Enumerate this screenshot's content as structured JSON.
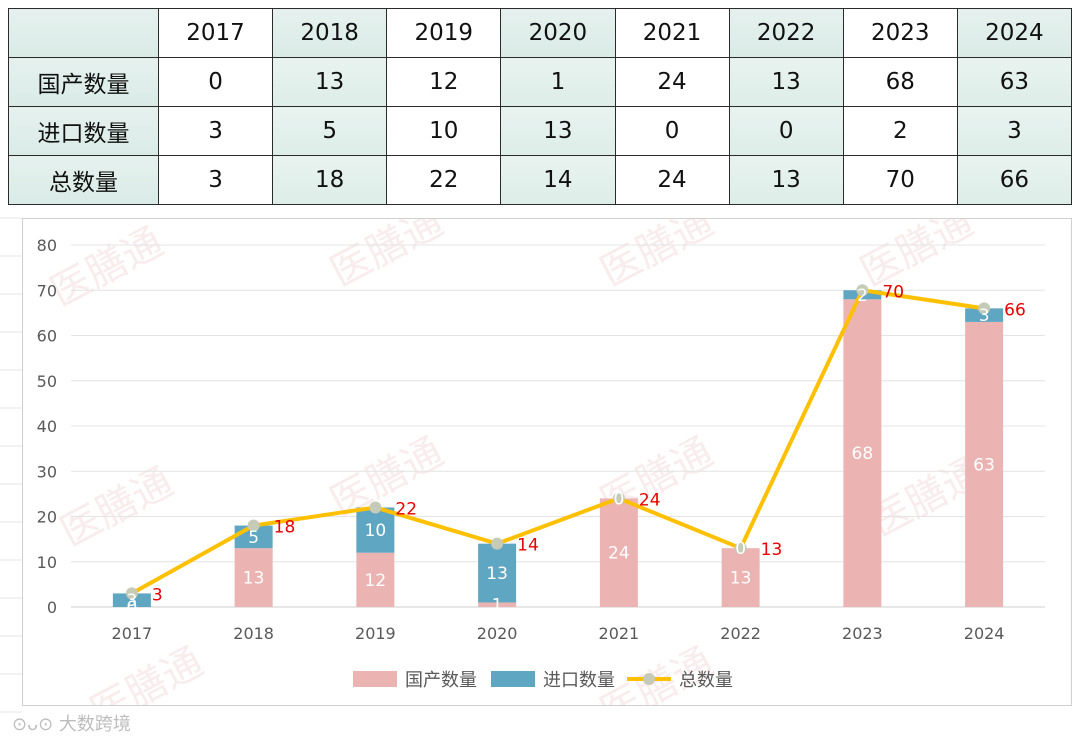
{
  "table": {
    "years": [
      "2017",
      "2018",
      "2019",
      "2020",
      "2021",
      "2022",
      "2023",
      "2024"
    ],
    "rows": [
      {
        "label": "国产数量",
        "values": [
          "0",
          "13",
          "12",
          "1",
          "24",
          "13",
          "68",
          "63"
        ]
      },
      {
        "label": "进口数量",
        "values": [
          "3",
          "5",
          "10",
          "13",
          "0",
          "0",
          "2",
          "3"
        ]
      },
      {
        "label": "总数量",
        "values": [
          "3",
          "18",
          "22",
          "14",
          "24",
          "13",
          "70",
          "66"
        ]
      }
    ]
  },
  "chart_data": {
    "type": "bar",
    "stacked": true,
    "categories": [
      "2017",
      "2018",
      "2019",
      "2020",
      "2021",
      "2022",
      "2023",
      "2024"
    ],
    "series": [
      {
        "name": "国产数量",
        "type": "bar",
        "color": "#ebb4b2",
        "values": [
          0,
          13,
          12,
          1,
          24,
          13,
          68,
          63
        ]
      },
      {
        "name": "进口数量",
        "type": "bar",
        "color": "#5fa6c2",
        "values": [
          3,
          5,
          10,
          13,
          0,
          0,
          2,
          3
        ]
      },
      {
        "name": "总数量",
        "type": "line",
        "color": "#ffc000",
        "marker_color": "#c5cbb7",
        "values": [
          3,
          18,
          22,
          14,
          24,
          13,
          70,
          66
        ]
      }
    ],
    "ylim": [
      0,
      80
    ],
    "yticks": [
      0,
      10,
      20,
      30,
      40,
      50,
      60,
      70,
      80
    ],
    "grid": true,
    "legend": "bottom",
    "total_label_color": "#e60000"
  },
  "watermark": "医膳通",
  "footer_brand": "大数跨境"
}
